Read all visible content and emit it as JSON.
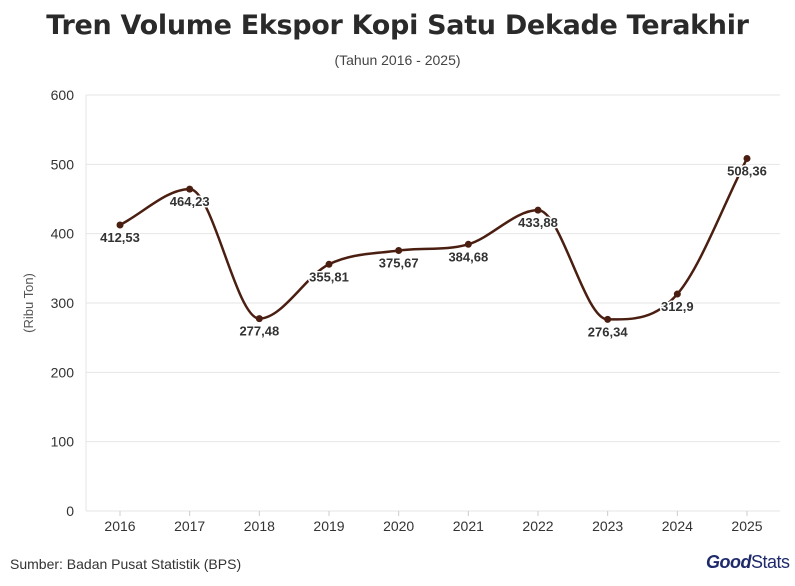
{
  "title": "Tren Volume Ekspor Kopi Satu Dekade Terakhir",
  "subtitle": "(Tahun 2016 - 2025)",
  "source": "Sumber: Badan Pusat Statistik (BPS)",
  "logo": {
    "good": "Good",
    "stats": "Stats"
  },
  "colors": {
    "line": "#4a1e10",
    "grid": "#e6e6e6"
  },
  "chart_data": {
    "type": "line",
    "categories": [
      "2016",
      "2017",
      "2018",
      "2019",
      "2020",
      "2021",
      "2022",
      "2023",
      "2024",
      "2025"
    ],
    "series": [
      {
        "values": [
          412.53,
          464.23,
          277.48,
          355.81,
          375.67,
          384.68,
          433.88,
          276.34,
          312.9,
          508.36
        ]
      }
    ],
    "data_labels": [
      "412,53",
      "464,23",
      "277,48",
      "355,81",
      "375,67",
      "384,68",
      "433,88",
      "276,34",
      "312,9",
      "508,36"
    ],
    "ylabel": "(Ribu Ton)",
    "ylim": [
      0,
      600
    ],
    "yticks": [
      0,
      100,
      200,
      300,
      400,
      500,
      600
    ],
    "grid": true,
    "smooth": true
  }
}
